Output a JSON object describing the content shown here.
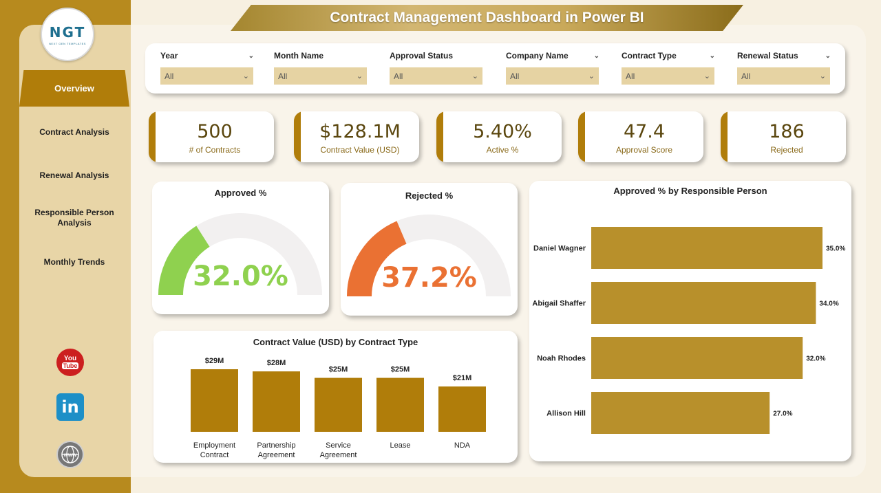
{
  "header": {
    "title": "Contract Management Dashboard in Power BI"
  },
  "logo": {
    "text": "NGT",
    "subtitle": "NEXT GEN TEMPLATES"
  },
  "nav": {
    "items": [
      {
        "label": "Overview",
        "active": true
      },
      {
        "label": "Contract Analysis"
      },
      {
        "label": "Renewal Analysis"
      },
      {
        "label": "Responsible Person Analysis"
      },
      {
        "label": "Monthly Trends"
      }
    ]
  },
  "social": [
    {
      "icon": "youtube-icon",
      "text": "You",
      "text2": "Tube"
    },
    {
      "icon": "linkedin-icon",
      "text": "in"
    },
    {
      "icon": "globe-icon",
      "text": "www"
    }
  ],
  "filters": [
    {
      "label": "Year",
      "value": "All"
    },
    {
      "label": "Month Name",
      "value": "All"
    },
    {
      "label": "Approval Status",
      "value": "All"
    },
    {
      "label": "Company Name",
      "value": "All"
    },
    {
      "label": "Contract Type",
      "value": "All"
    },
    {
      "label": "Renewal Status",
      "value": "All"
    }
  ],
  "kpis": [
    {
      "value": "500",
      "label": "# of Contracts"
    },
    {
      "value": "$128.1M",
      "label": "Contract Value (USD)"
    },
    {
      "value": "5.40%",
      "label": "Active %"
    },
    {
      "value": "47.4",
      "label": "Approval Score"
    },
    {
      "value": "186",
      "label": "Rejected"
    }
  ],
  "gauges": {
    "approved": {
      "title": "Approved %",
      "value": 32.0,
      "label": "32.0%",
      "color": "#8fd14f"
    },
    "rejected": {
      "title": "Rejected %",
      "value": 37.2,
      "label": "37.2%",
      "color": "#ea7133"
    }
  },
  "colors": {
    "accent": "#b07d0a",
    "bar_gold": "#b8902b",
    "gauge_track": "#f2f0f0"
  },
  "chart_data": [
    {
      "type": "bar",
      "title": "Contract Value (USD) by Contract Type",
      "categories": [
        "Employment Contract",
        "Partnership Agreement",
        "Service Agreement",
        "Lease",
        "NDA"
      ],
      "category_lines": [
        [
          "Employment",
          "Contract"
        ],
        [
          "Partnership",
          "Agreement"
        ],
        [
          "Service",
          "Agreement"
        ],
        [
          "Lease"
        ],
        [
          "NDA"
        ]
      ],
      "values": [
        29,
        28,
        25,
        25,
        21
      ],
      "data_labels": [
        "$29M",
        "$28M",
        "$25M",
        "$25M",
        "$21M"
      ],
      "unit": "$M"
    },
    {
      "type": "bar",
      "orientation": "horizontal",
      "title": "Approved % by Responsible Person",
      "categories": [
        "Daniel Wagner",
        "Abigail Shaffer",
        "Noah Rhodes",
        "Allison Hill"
      ],
      "values": [
        35.0,
        34.0,
        32.0,
        27.0
      ],
      "data_labels": [
        "35.0%",
        "34.0%",
        "32.0%",
        "27.0%"
      ]
    }
  ]
}
